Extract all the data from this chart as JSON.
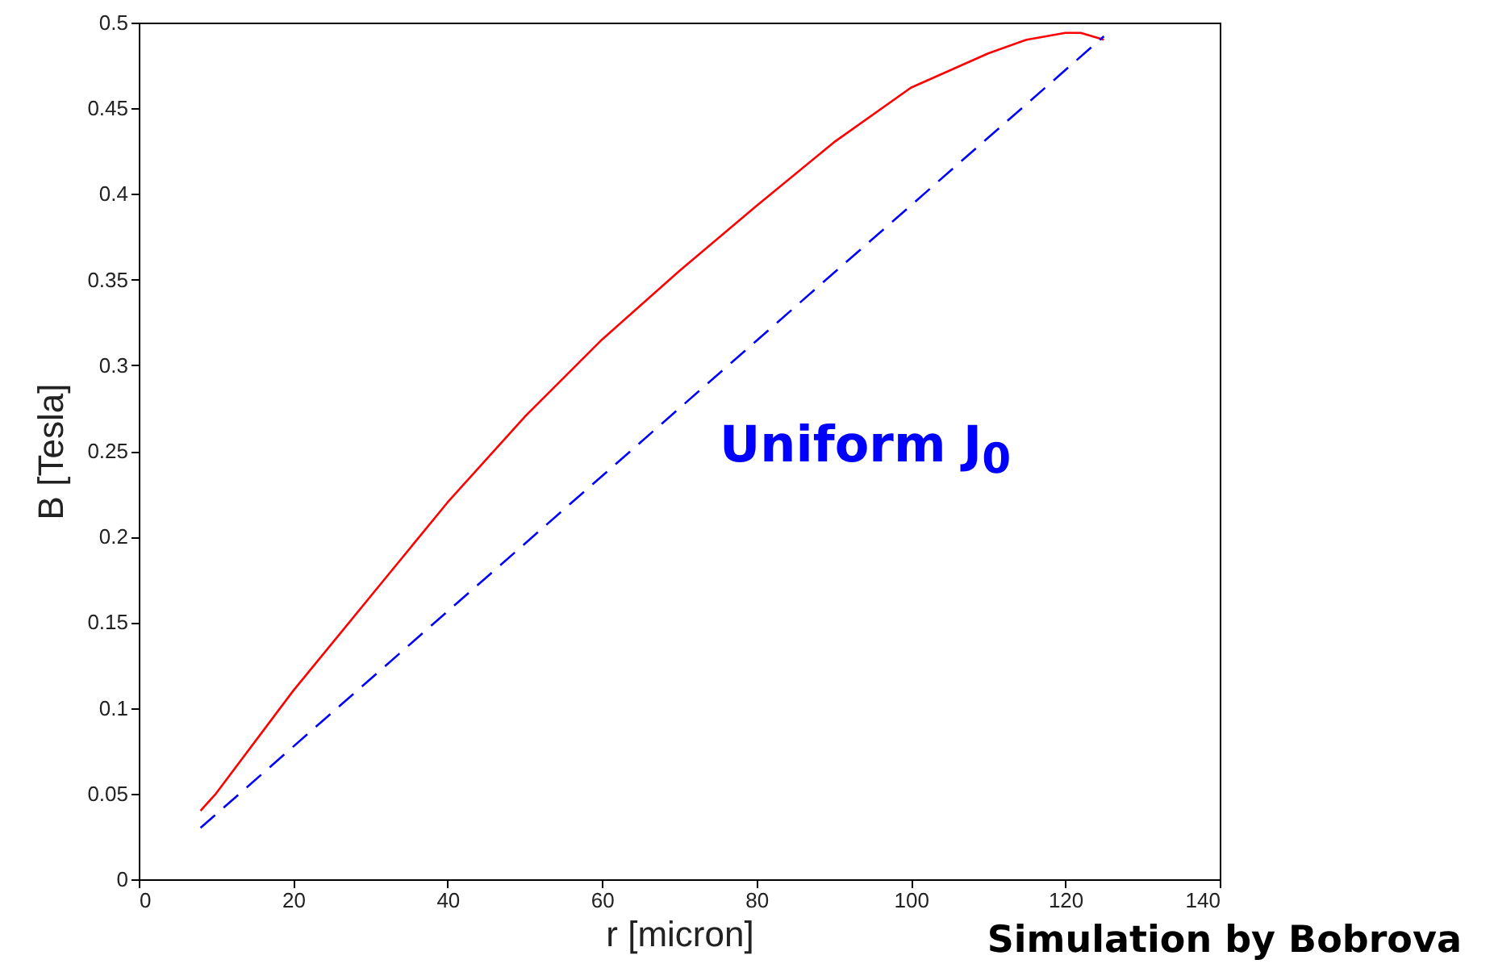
{
  "chart_data": {
    "type": "line",
    "xlabel": "r [micron]",
    "ylabel": "B [Tesla]",
    "xlim": [
      0,
      140
    ],
    "xticks": [
      0,
      20,
      40,
      60,
      80,
      100,
      120,
      140
    ],
    "ylim": [
      0,
      0.5
    ],
    "yticks": [
      0,
      0.05,
      0.1,
      0.15,
      0.2,
      0.25,
      0.3,
      0.35,
      0.4,
      0.45,
      0.5
    ],
    "grid": false,
    "series": [
      {
        "color": "#ff0000",
        "line_style": "solid",
        "x": [
          8,
          10,
          20,
          30,
          40,
          50,
          60,
          70,
          80,
          90,
          100,
          110,
          115,
          120,
          122,
          125
        ],
        "values": [
          0.04,
          0.05,
          0.11,
          0.165,
          0.22,
          0.27,
          0.315,
          0.355,
          0.393,
          0.43,
          0.462,
          0.482,
          0.49,
          0.494,
          0.494,
          0.49
        ]
      },
      {
        "color": "#0000ff",
        "line_style": "dashed",
        "x": [
          8,
          125
        ],
        "values": [
          0.03,
          0.492
        ]
      }
    ],
    "annotations": [
      "Uniform J$_{0}$",
      "Simulation by Bobrova"
    ]
  }
}
